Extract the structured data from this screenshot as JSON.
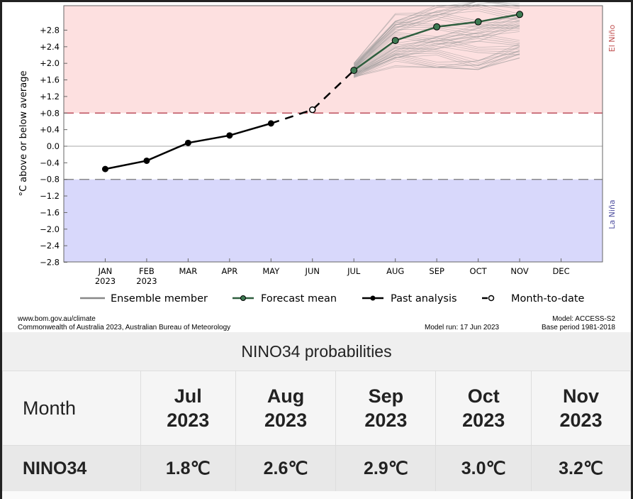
{
  "chart_data": {
    "type": "line",
    "ylabel": "°C above or below average",
    "yticks": [
      "+2.8",
      "+2.4",
      "+2.0",
      "+1.6",
      "+1.2",
      "+0.8",
      "+0.4",
      "0.0",
      "−0.4",
      "−0.8",
      "−1.2",
      "−1.6",
      "−2.0",
      "−2.4",
      "−2.8"
    ],
    "ytick_values": [
      2.8,
      2.4,
      2.0,
      1.6,
      1.2,
      0.8,
      0.4,
      0.0,
      -0.4,
      -0.8,
      -1.2,
      -1.6,
      -2.0,
      -2.4,
      -2.8
    ],
    "ylim": [
      -2.8,
      3.4
    ],
    "xticks": [
      {
        "m": "JAN",
        "y": "2023"
      },
      {
        "m": "FEB",
        "y": "2023"
      },
      {
        "m": "MAR",
        "y": ""
      },
      {
        "m": "APR",
        "y": ""
      },
      {
        "m": "MAY",
        "y": ""
      },
      {
        "m": "JUN",
        "y": ""
      },
      {
        "m": "JUL",
        "y": ""
      },
      {
        "m": "AUG",
        "y": ""
      },
      {
        "m": "SEP",
        "y": ""
      },
      {
        "m": "OCT",
        "y": ""
      },
      {
        "m": "NOV",
        "y": ""
      },
      {
        "m": "DEC",
        "y": ""
      }
    ],
    "thresholds": {
      "el_nino": 0.8,
      "la_nina": -0.8
    },
    "region_labels": {
      "el_nino": "El Niño",
      "la_nina": "La Niña"
    },
    "past_analysis": {
      "months": [
        1,
        2,
        3,
        4,
        5
      ],
      "values": [
        -0.55,
        -0.35,
        0.08,
        0.26,
        0.55
      ]
    },
    "month_to_date": {
      "month": 6,
      "value": 0.88
    },
    "forecast_mean": {
      "months": [
        7,
        8,
        9,
        10,
        11
      ],
      "values": [
        1.83,
        2.55,
        2.88,
        3.0,
        3.18
      ]
    },
    "ensemble_envelope": {
      "months": [
        7,
        8,
        9,
        10,
        11
      ],
      "min": [
        1.65,
        1.9,
        1.9,
        1.85,
        2.05
      ],
      "max": [
        2.0,
        3.2,
        3.4,
        3.5,
        3.5
      ]
    },
    "legend": [
      "Ensemble member",
      "Forecast mean",
      "Past analysis",
      "Month-to-date"
    ],
    "legend_position": "bottom",
    "colors": {
      "el_nino_bg": "#fde0e0",
      "la_nina_bg": "#d8d8fb",
      "mean": "#2e5e3e",
      "mean_marker": "#3d7a52",
      "ensemble": "#999999",
      "threshold_red": "#b03040",
      "threshold_gray": "#777777"
    }
  },
  "footer": {
    "url": "www.bom.gov.au/climate",
    "copyright": "Commonwealth of Australia 2023, Australian Bureau of Meteorology",
    "model_run": "Model run: 17 Jun 2023",
    "model": "Model: ACCESS-S2",
    "base_period": "Base period 1981-2018"
  },
  "table": {
    "title": "NINO34 probabilities",
    "header_first": "Month",
    "columns": [
      {
        "month": "Jul",
        "year": "2023"
      },
      {
        "month": "Aug",
        "year": "2023"
      },
      {
        "month": "Sep",
        "year": "2023"
      },
      {
        "month": "Oct",
        "year": "2023"
      },
      {
        "month": "Nov",
        "year": "2023"
      }
    ],
    "row_label": "NINO34",
    "values": [
      "1.8℃",
      "2.6℃",
      "2.9℃",
      "3.0℃",
      "3.2℃"
    ]
  }
}
